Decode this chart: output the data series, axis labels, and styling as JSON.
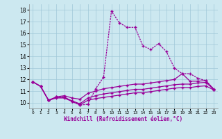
{
  "xlabel": "Windchill (Refroidissement éolien,°C)",
  "ylim": [
    9.5,
    18.5
  ],
  "xlim": [
    -0.5,
    23.5
  ],
  "yticks": [
    10,
    11,
    12,
    13,
    14,
    15,
    16,
    17,
    18
  ],
  "xticks": [
    0,
    1,
    2,
    3,
    4,
    5,
    6,
    7,
    8,
    9,
    10,
    11,
    12,
    13,
    14,
    15,
    16,
    17,
    18,
    19,
    20,
    21,
    22,
    23
  ],
  "bg_color": "#cce8f0",
  "grid_color": "#a0c8d8",
  "line_color": "#990099",
  "main_line": [
    11.8,
    11.4,
    10.2,
    10.5,
    10.5,
    10.1,
    9.8,
    9.85,
    11.2,
    12.2,
    17.9,
    16.9,
    16.5,
    16.5,
    14.9,
    14.6,
    15.1,
    14.4,
    13.0,
    12.5,
    12.5,
    12.1,
    11.9,
    11.2
  ],
  "line2": [
    11.8,
    11.4,
    10.2,
    10.5,
    10.6,
    10.4,
    10.3,
    10.8,
    11.0,
    11.2,
    11.3,
    11.4,
    11.5,
    11.6,
    11.6,
    11.7,
    11.8,
    11.9,
    12.0,
    12.5,
    11.85,
    11.85,
    11.9,
    11.15
  ],
  "line3": [
    11.8,
    11.4,
    10.2,
    10.45,
    10.45,
    10.15,
    9.9,
    10.4,
    10.6,
    10.75,
    10.85,
    10.95,
    11.05,
    11.15,
    11.15,
    11.25,
    11.35,
    11.45,
    11.55,
    11.6,
    11.6,
    11.7,
    11.75,
    11.15
  ],
  "line4": [
    11.8,
    11.4,
    10.2,
    10.4,
    10.4,
    10.1,
    9.8,
    10.2,
    10.35,
    10.45,
    10.55,
    10.65,
    10.75,
    10.85,
    10.85,
    10.95,
    11.05,
    11.15,
    11.25,
    11.3,
    11.3,
    11.4,
    11.45,
    11.1
  ]
}
